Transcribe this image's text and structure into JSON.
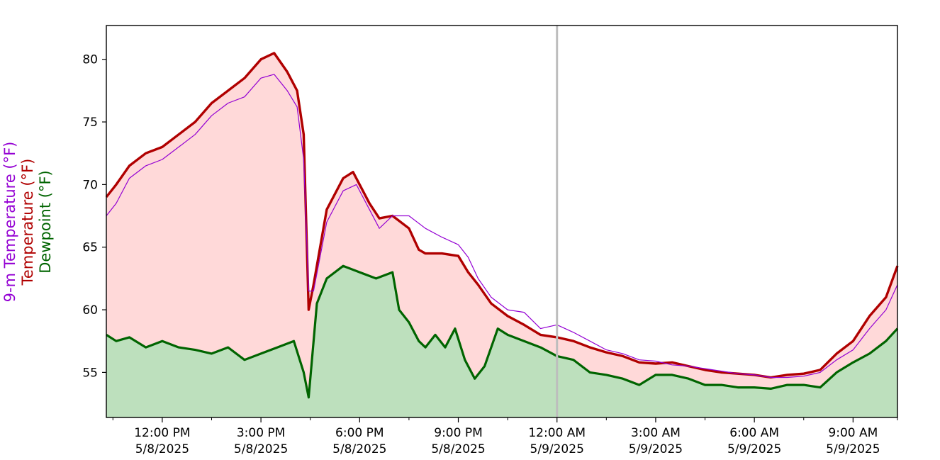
{
  "chart_data": {
    "type": "area",
    "x_label": "",
    "y_labels": [
      {
        "text": "9-m Temperature (°F)",
        "color": "#9400d3"
      },
      {
        "text": "Temperature (°F)",
        "color": "#b00000"
      },
      {
        "text": "Dewpoint (°F)",
        "color": "#006400"
      }
    ],
    "xlim_hours": [
      10.3,
      34.35
    ],
    "ylim": [
      51.4,
      82.7
    ],
    "grid": false,
    "y_ticks": [
      55,
      60,
      65,
      70,
      75,
      80
    ],
    "x_ticks": [
      {
        "hour": 12,
        "time": "12:00 PM",
        "date": "5/8/2025"
      },
      {
        "hour": 15,
        "time": "3:00 PM",
        "date": "5/8/2025"
      },
      {
        "hour": 18,
        "time": "6:00 PM",
        "date": "5/8/2025"
      },
      {
        "hour": 21,
        "time": "9:00 PM",
        "date": "5/8/2025"
      },
      {
        "hour": 24,
        "time": "12:00 AM",
        "date": "5/9/2025"
      },
      {
        "hour": 27,
        "time": "3:00 AM",
        "date": "5/9/2025"
      },
      {
        "hour": 30,
        "time": "6:00 AM",
        "date": "5/9/2025"
      },
      {
        "hour": 33,
        "time": "9:00 AM",
        "date": "5/9/2025"
      }
    ],
    "minor_tick_hours": [
      10.5,
      13.5,
      16.5,
      19.5,
      22.5,
      25.5,
      28.5,
      31.5,
      34.35
    ],
    "midnight_marker_hour": 24,
    "series": [
      {
        "name": "9-m Temperature",
        "color": "#9400d3",
        "points": [
          [
            10.3,
            67.5
          ],
          [
            10.6,
            68.5
          ],
          [
            11.0,
            70.5
          ],
          [
            11.5,
            71.5
          ],
          [
            12.0,
            72.0
          ],
          [
            12.5,
            73.0
          ],
          [
            13.0,
            74.0
          ],
          [
            13.5,
            75.5
          ],
          [
            14.0,
            76.5
          ],
          [
            14.5,
            77.0
          ],
          [
            15.0,
            78.5
          ],
          [
            15.4,
            78.8
          ],
          [
            15.8,
            77.5
          ],
          [
            16.1,
            76.2
          ],
          [
            16.3,
            72.0
          ],
          [
            16.45,
            61.5
          ],
          [
            16.6,
            61.5
          ],
          [
            17.0,
            67.0
          ],
          [
            17.5,
            69.5
          ],
          [
            17.9,
            70.0
          ],
          [
            18.3,
            68.0
          ],
          [
            18.6,
            66.5
          ],
          [
            19.0,
            67.5
          ],
          [
            19.5,
            67.5
          ],
          [
            20.0,
            66.5
          ],
          [
            20.5,
            65.8
          ],
          [
            21.0,
            65.2
          ],
          [
            21.3,
            64.2
          ],
          [
            21.6,
            62.5
          ],
          [
            22.0,
            61.0
          ],
          [
            22.5,
            60.0
          ],
          [
            23.0,
            59.8
          ],
          [
            23.5,
            58.5
          ],
          [
            24.0,
            58.8
          ],
          [
            24.5,
            58.2
          ],
          [
            25.0,
            57.5
          ],
          [
            25.5,
            56.8
          ],
          [
            26.0,
            56.5
          ],
          [
            26.5,
            56.0
          ],
          [
            27.0,
            55.9
          ],
          [
            27.5,
            55.6
          ],
          [
            28.0,
            55.5
          ],
          [
            28.5,
            55.3
          ],
          [
            29.0,
            55.1
          ],
          [
            29.5,
            54.9
          ],
          [
            30.0,
            54.8
          ],
          [
            30.5,
            54.6
          ],
          [
            31.0,
            54.6
          ],
          [
            31.5,
            54.7
          ],
          [
            32.0,
            55.0
          ],
          [
            32.5,
            56.0
          ],
          [
            33.0,
            56.8
          ],
          [
            33.5,
            58.5
          ],
          [
            34.0,
            60.0
          ],
          [
            34.35,
            62.0
          ]
        ]
      },
      {
        "name": "Temperature",
        "color": "#b00000",
        "points": [
          [
            10.3,
            69.0
          ],
          [
            10.6,
            70.0
          ],
          [
            11.0,
            71.5
          ],
          [
            11.5,
            72.5
          ],
          [
            12.0,
            73.0
          ],
          [
            12.5,
            74.0
          ],
          [
            13.0,
            75.0
          ],
          [
            13.5,
            76.5
          ],
          [
            14.0,
            77.5
          ],
          [
            14.5,
            78.5
          ],
          [
            15.0,
            80.0
          ],
          [
            15.4,
            80.5
          ],
          [
            15.8,
            79.0
          ],
          [
            16.1,
            77.5
          ],
          [
            16.3,
            74.0
          ],
          [
            16.45,
            60.0
          ],
          [
            16.6,
            62.0
          ],
          [
            17.0,
            68.0
          ],
          [
            17.5,
            70.5
          ],
          [
            17.8,
            71.0
          ],
          [
            18.0,
            70.0
          ],
          [
            18.3,
            68.5
          ],
          [
            18.6,
            67.3
          ],
          [
            19.0,
            67.5
          ],
          [
            19.5,
            66.5
          ],
          [
            19.8,
            64.8
          ],
          [
            20.0,
            64.5
          ],
          [
            20.5,
            64.5
          ],
          [
            21.0,
            64.3
          ],
          [
            21.3,
            63.0
          ],
          [
            21.6,
            62.0
          ],
          [
            22.0,
            60.5
          ],
          [
            22.5,
            59.5
          ],
          [
            23.0,
            58.8
          ],
          [
            23.5,
            58.0
          ],
          [
            24.0,
            57.8
          ],
          [
            24.5,
            57.5
          ],
          [
            25.0,
            57.0
          ],
          [
            25.5,
            56.6
          ],
          [
            26.0,
            56.3
          ],
          [
            26.5,
            55.8
          ],
          [
            27.0,
            55.7
          ],
          [
            27.5,
            55.8
          ],
          [
            28.0,
            55.5
          ],
          [
            28.5,
            55.2
          ],
          [
            29.0,
            55.0
          ],
          [
            29.5,
            54.9
          ],
          [
            30.0,
            54.8
          ],
          [
            30.5,
            54.6
          ],
          [
            31.0,
            54.8
          ],
          [
            31.5,
            54.9
          ],
          [
            32.0,
            55.2
          ],
          [
            32.5,
            56.5
          ],
          [
            33.0,
            57.5
          ],
          [
            33.5,
            59.5
          ],
          [
            34.0,
            61.0
          ],
          [
            34.35,
            63.5
          ]
        ]
      },
      {
        "name": "Dewpoint",
        "color": "#006400",
        "points": [
          [
            10.3,
            58.0
          ],
          [
            10.6,
            57.5
          ],
          [
            11.0,
            57.8
          ],
          [
            11.5,
            57.0
          ],
          [
            12.0,
            57.5
          ],
          [
            12.5,
            57.0
          ],
          [
            13.0,
            56.8
          ],
          [
            13.5,
            56.5
          ],
          [
            14.0,
            57.0
          ],
          [
            14.5,
            56.0
          ],
          [
            15.0,
            56.5
          ],
          [
            15.5,
            57.0
          ],
          [
            16.0,
            57.5
          ],
          [
            16.3,
            55.0
          ],
          [
            16.45,
            53.0
          ],
          [
            16.7,
            60.5
          ],
          [
            17.0,
            62.5
          ],
          [
            17.5,
            63.5
          ],
          [
            18.0,
            63.0
          ],
          [
            18.5,
            62.5
          ],
          [
            19.0,
            63.0
          ],
          [
            19.2,
            60.0
          ],
          [
            19.5,
            59.0
          ],
          [
            19.8,
            57.5
          ],
          [
            20.0,
            57.0
          ],
          [
            20.3,
            58.0
          ],
          [
            20.6,
            57.0
          ],
          [
            20.9,
            58.5
          ],
          [
            21.2,
            56.0
          ],
          [
            21.5,
            54.5
          ],
          [
            21.8,
            55.5
          ],
          [
            22.2,
            58.5
          ],
          [
            22.5,
            58.0
          ],
          [
            23.0,
            57.5
          ],
          [
            23.5,
            57.0
          ],
          [
            24.0,
            56.3
          ],
          [
            24.5,
            56.0
          ],
          [
            25.0,
            55.0
          ],
          [
            25.5,
            54.8
          ],
          [
            26.0,
            54.5
          ],
          [
            26.5,
            54.0
          ],
          [
            27.0,
            54.8
          ],
          [
            27.5,
            54.8
          ],
          [
            28.0,
            54.5
          ],
          [
            28.5,
            54.0
          ],
          [
            29.0,
            54.0
          ],
          [
            29.5,
            53.8
          ],
          [
            30.0,
            53.8
          ],
          [
            30.5,
            53.7
          ],
          [
            31.0,
            54.0
          ],
          [
            31.5,
            54.0
          ],
          [
            32.0,
            53.8
          ],
          [
            32.5,
            55.0
          ],
          [
            33.0,
            55.8
          ],
          [
            33.5,
            56.5
          ],
          [
            34.0,
            57.5
          ],
          [
            34.35,
            58.5
          ]
        ]
      }
    ]
  }
}
